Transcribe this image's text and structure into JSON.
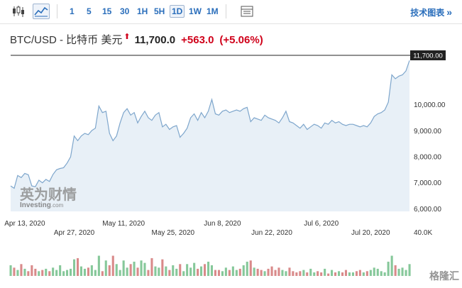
{
  "toolbar": {
    "timeframes": [
      "1",
      "5",
      "15",
      "30",
      "1H",
      "5H",
      "1D",
      "1W",
      "1M"
    ],
    "selected_timeframe": "1D",
    "tech_chart_label": "技术图表",
    "tech_chart_arrow": "»"
  },
  "header": {
    "symbol": "BTC/USD - 比特币 美元",
    "up_marker": "⬆",
    "price": "11,700.0",
    "change": "+563.0",
    "change_pct": "(+5.06%)"
  },
  "watermark": {
    "cn": "英为财情",
    "investing": "Investing",
    "suffix": ".com",
    "source": "格隆汇"
  },
  "chart_data": {
    "type": "area",
    "current_price_label": "11,700.00",
    "y_ticks": [
      6000,
      7000,
      8000,
      9000,
      10000
    ],
    "y_tick_labels": [
      "6,000.00",
      "7,000.00",
      "8,000.00",
      "9,000.00",
      "10,000.00"
    ],
    "ylim": [
      5900,
      11900
    ],
    "volume_label": "40.0K",
    "volume_max": 40000,
    "x_tick_labels_top": [
      {
        "label": "Apr 13, 2020",
        "index": 4
      },
      {
        "label": "May 11, 2020",
        "index": 32
      },
      {
        "label": "Jun 8, 2020",
        "index": 60
      },
      {
        "label": "Jul 6, 2020",
        "index": 88
      }
    ],
    "x_tick_labels_bottom": [
      {
        "label": "Apr 27, 2020",
        "index": 18
      },
      {
        "label": "May 25, 2020",
        "index": 46
      },
      {
        "label": "Jun 22, 2020",
        "index": 74
      },
      {
        "label": "Jul 20, 2020",
        "index": 102
      }
    ],
    "close": [
      6880,
      6790,
      7280,
      7200,
      7360,
      7310,
      6880,
      6850,
      7100,
      7000,
      7130,
      7050,
      7320,
      7500,
      7550,
      7580,
      7760,
      8000,
      8800,
      8620,
      8800,
      8900,
      8850,
      9010,
      9100,
      9950,
      9700,
      9750,
      8900,
      8620,
      8800,
      9300,
      9700,
      9850,
      9600,
      9700,
      9300,
      9550,
      9750,
      9500,
      9400,
      9600,
      9700,
      9150,
      9250,
      9050,
      9150,
      9200,
      8750,
      8900,
      9100,
      9500,
      9650,
      9400,
      9700,
      9500,
      9750,
      10200,
      9650,
      9600,
      9750,
      9800,
      9700,
      9750,
      9800,
      9750,
      9850,
      9900,
      9350,
      9500,
      9450,
      9400,
      9600,
      9500,
      9450,
      9400,
      9300,
      9500,
      9750,
      9350,
      9300,
      9200,
      9100,
      9250,
      9050,
      9150,
      9250,
      9200,
      9100,
      9300,
      9250,
      9400,
      9300,
      9350,
      9250,
      9200,
      9250,
      9250,
      9200,
      9150,
      9200,
      9150,
      9300,
      9550,
      9650,
      9700,
      9800,
      10100,
      11150,
      11000,
      11100,
      11150,
      11300,
      11700
    ],
    "volume": [
      9000,
      7000,
      5000,
      10000,
      6000,
      4000,
      9000,
      6000,
      4000,
      5000,
      6000,
      4000,
      7000,
      5000,
      9000,
      4000,
      5000,
      6000,
      14000,
      15000,
      8000,
      6000,
      7000,
      9000,
      5000,
      17000,
      4000,
      13000,
      9000,
      17000,
      10000,
      5000,
      13000,
      7000,
      10000,
      12000,
      7000,
      13000,
      11000,
      5000,
      15000,
      8000,
      7000,
      14000,
      8000,
      5000,
      9000,
      6000,
      10000,
      4000,
      10000,
      7000,
      11000,
      6000,
      8000,
      10000,
      12000,
      9000,
      5000,
      5000,
      4000,
      7000,
      5000,
      8000,
      5000,
      6000,
      9000,
      12000,
      13000,
      7000,
      6000,
      5000,
      4000,
      6000,
      8000,
      5000,
      7000,
      5000,
      4000,
      7000,
      4000,
      3000,
      4000,
      5000,
      3000,
      6000,
      3000,
      4000,
      3000,
      6000,
      2000,
      5000,
      3000,
      4000,
      3000,
      5000,
      3000,
      3000,
      4000,
      5000,
      3000,
      4000,
      5000,
      7000,
      6000,
      4000,
      3000,
      12000,
      17000,
      9000,
      6000,
      7000,
      5000,
      10000
    ],
    "colors": {
      "line": "#7ea6cc",
      "fill": "#e8f0f7",
      "vol_up": "#86c89a",
      "vol_down": "#d98a8a",
      "current_line": "#222222",
      "label_bg": "#222222"
    }
  }
}
